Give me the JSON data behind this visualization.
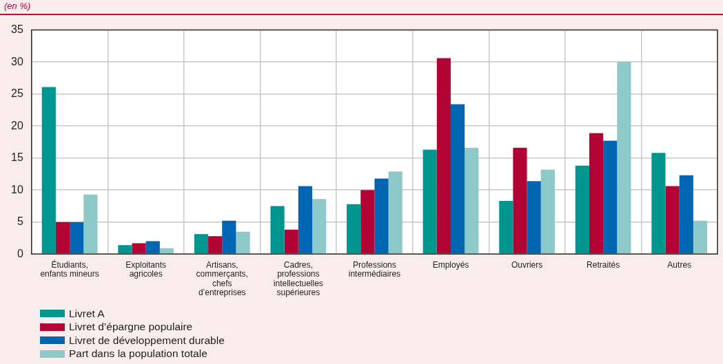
{
  "chart_data": {
    "type": "bar",
    "ylabel": "(en %)",
    "categories": [
      "Étudiants, enfants mineurs",
      "Exploitants agricoles",
      "Artisans, commerçants, chefs d’entreprises",
      "Cadres, professions intellectuelles supérieures",
      "Professions intermédiaires",
      "Employés",
      "Ouvriers",
      "Retraités",
      "Autres"
    ],
    "series": [
      {
        "name": "Livret A",
        "color": "#00958e",
        "values": [
          26.1,
          1.4,
          3.1,
          7.5,
          7.8,
          16.3,
          8.3,
          13.8,
          15.8
        ]
      },
      {
        "name": "Livret d’épargne populaire",
        "color": "#b10334",
        "values": [
          5.0,
          1.7,
          2.8,
          3.8,
          10.0,
          30.6,
          16.6,
          18.9,
          10.6
        ]
      },
      {
        "name": "Livret de développement durable",
        "color": "#0066b3",
        "values": [
          5.0,
          2.0,
          5.2,
          10.6,
          11.8,
          23.4,
          11.4,
          17.7,
          12.3
        ]
      },
      {
        "name": "Part dans la population totale",
        "color": "#8dc9c8",
        "values": [
          9.3,
          0.9,
          3.5,
          8.6,
          12.9,
          16.6,
          13.2,
          30.0,
          5.2
        ]
      }
    ],
    "ylim": [
      0,
      35
    ],
    "yticks": [
      0,
      5,
      10,
      15,
      20,
      25,
      30,
      35
    ],
    "grid": true,
    "legend": "bottom left"
  }
}
